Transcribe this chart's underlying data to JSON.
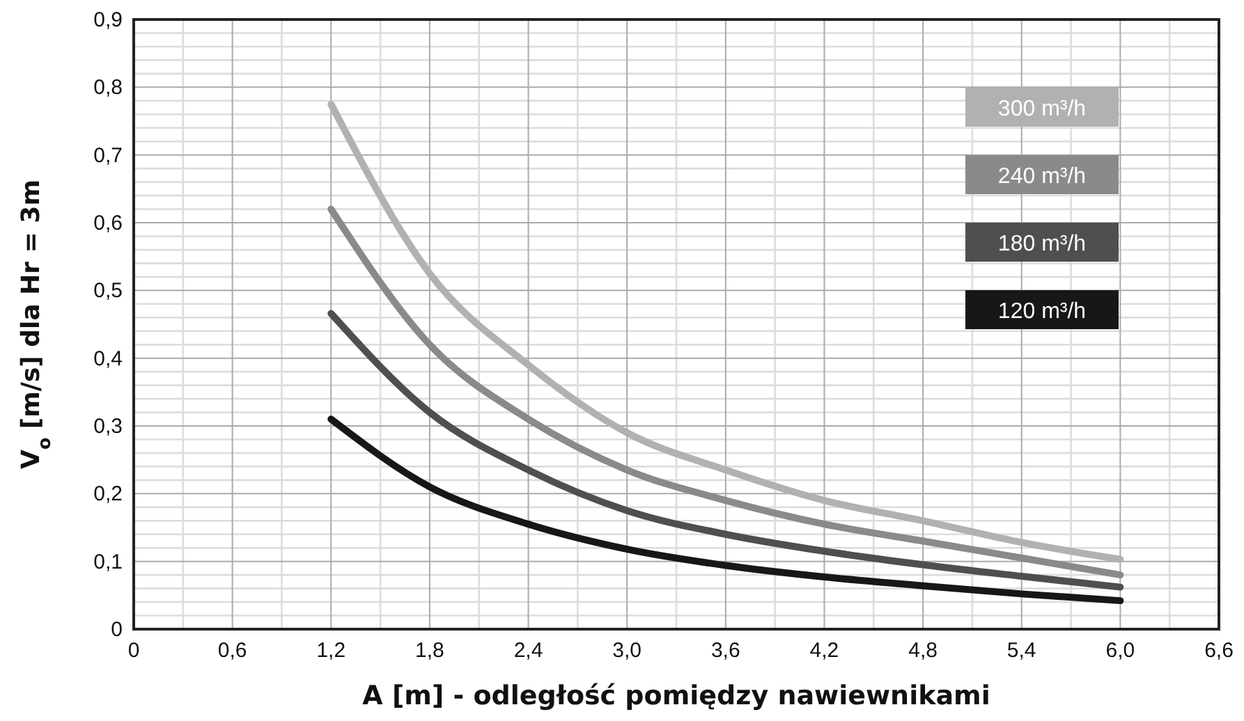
{
  "chart_data": {
    "type": "line",
    "xlabel": "A [m] - odległość pomiędzy nawiewnikami",
    "ylabel": "V$_{o}$  [m/s] dla Hr = 3m",
    "x": [
      1.2,
      1.8,
      2.4,
      3.0,
      3.6,
      4.2,
      4.8,
      5.4,
      6.0
    ],
    "series": [
      {
        "name": "300 m³/h",
        "color": "#b0b1b0",
        "values": [
          0.775,
          0.525,
          0.39,
          0.29,
          0.235,
          0.19,
          0.16,
          0.128,
          0.103
        ]
      },
      {
        "name": "240 m³/h",
        "color": "#8a8a8a",
        "values": [
          0.62,
          0.42,
          0.31,
          0.235,
          0.19,
          0.155,
          0.13,
          0.105,
          0.08
        ]
      },
      {
        "name": "180 m³/h",
        "color": "#4f4f4f",
        "values": [
          0.466,
          0.32,
          0.235,
          0.175,
          0.14,
          0.115,
          0.095,
          0.078,
          0.062
        ]
      },
      {
        "name": "120 m³/h",
        "color": "#171717",
        "values": [
          0.31,
          0.21,
          0.155,
          0.118,
          0.094,
          0.077,
          0.064,
          0.052,
          0.042
        ]
      }
    ],
    "xlim": [
      0,
      6.6
    ],
    "xticks": [
      0,
      {
        "value": 0.6,
        "label": "0,6"
      },
      {
        "value": 1.2,
        "label": "1,2"
      },
      {
        "value": 1.8,
        "label": "1,8"
      },
      {
        "value": 2.4,
        "label": "2,4"
      },
      {
        "value": 3.0,
        "label": "3,0"
      },
      {
        "value": 3.6,
        "label": "3,6"
      },
      {
        "value": 4.2,
        "label": "4,2"
      },
      {
        "value": 4.8,
        "label": "4,8"
      },
      {
        "value": 5.4,
        "label": "5,4"
      },
      {
        "value": 6.0,
        "label": "6,0"
      },
      {
        "value": 6.6,
        "label": "6,6"
      }
    ],
    "ylim": [
      0,
      0.9
    ],
    "yticks": [
      0,
      {
        "value": 0.1,
        "label": "0,1"
      },
      {
        "value": 0.2,
        "label": "0,2"
      },
      {
        "value": 0.3,
        "label": "0,3"
      },
      {
        "value": 0.4,
        "label": "0,4"
      },
      {
        "value": 0.5,
        "label": "0,5"
      },
      {
        "value": 0.6,
        "label": "0,6"
      },
      {
        "value": 0.7,
        "label": "0,7"
      },
      {
        "value": 0.8,
        "label": "0,8"
      },
      {
        "value": 0.9,
        "label": "0,9"
      }
    ],
    "grid": true,
    "legend": "top right",
    "marker": "none",
    "line_style": "solid"
  }
}
